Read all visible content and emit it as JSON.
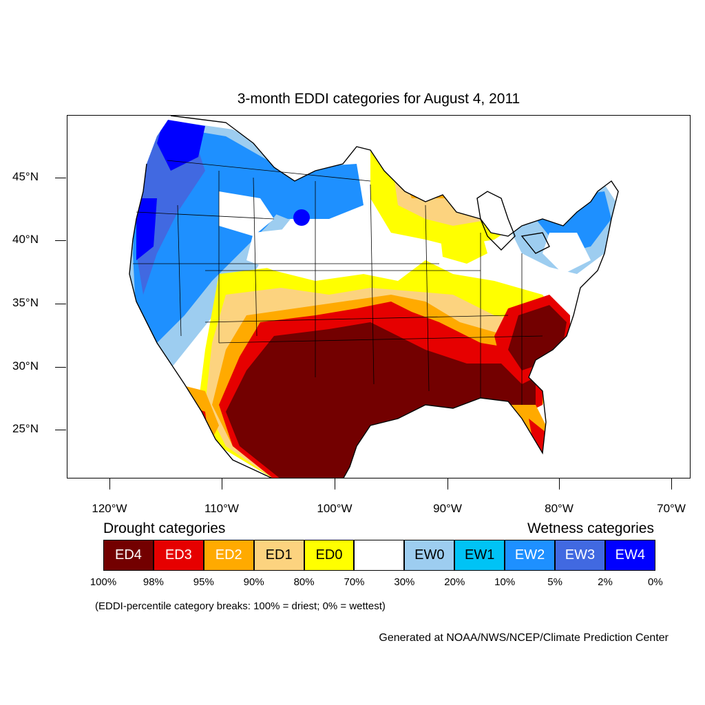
{
  "title": "3-month EDDI categories for August 4, 2011",
  "axes": {
    "lat_labels": [
      "45°N",
      "40°N",
      "35°N",
      "30°N",
      "25°N"
    ],
    "lon_labels": [
      "120°W",
      "110°W",
      "100°W",
      "90°W",
      "80°W",
      "70°W"
    ]
  },
  "legend": {
    "drought_heading": "Drought categories",
    "wetness_heading": "Wetness categories",
    "categories": [
      {
        "label": "ED4",
        "color": "#730000",
        "text_color": "#ffffff"
      },
      {
        "label": "ED3",
        "color": "#e60000",
        "text_color": "#ffffff"
      },
      {
        "label": "ED2",
        "color": "#ffaa00",
        "text_color": "#ffffff"
      },
      {
        "label": "ED1",
        "color": "#fcd37f",
        "text_color": "#000000"
      },
      {
        "label": "ED0",
        "color": "#ffff00",
        "text_color": "#000000"
      },
      {
        "label": "",
        "color": "#ffffff",
        "text_color": "#000000"
      },
      {
        "label": "EW0",
        "color": "#9dcdf0",
        "text_color": "#000000"
      },
      {
        "label": "EW1",
        "color": "#00c3f5",
        "text_color": "#000000"
      },
      {
        "label": "EW2",
        "color": "#1e90ff",
        "text_color": "#ffffff"
      },
      {
        "label": "EW3",
        "color": "#4169e1",
        "text_color": "#ffffff"
      },
      {
        "label": "EW4",
        "color": "#0000ff",
        "text_color": "#ffffff"
      }
    ],
    "breaks": [
      "100%",
      "98%",
      "95%",
      "90%",
      "80%",
      "70%",
      "30%",
      "20%",
      "10%",
      "5%",
      "2%",
      "0%"
    ]
  },
  "note": "(EDDI-percentile category breaks: 100% = driest; 0% = wettest)",
  "credit": "Generated at NOAA/NWS/NCEP/Climate Prediction Center"
}
